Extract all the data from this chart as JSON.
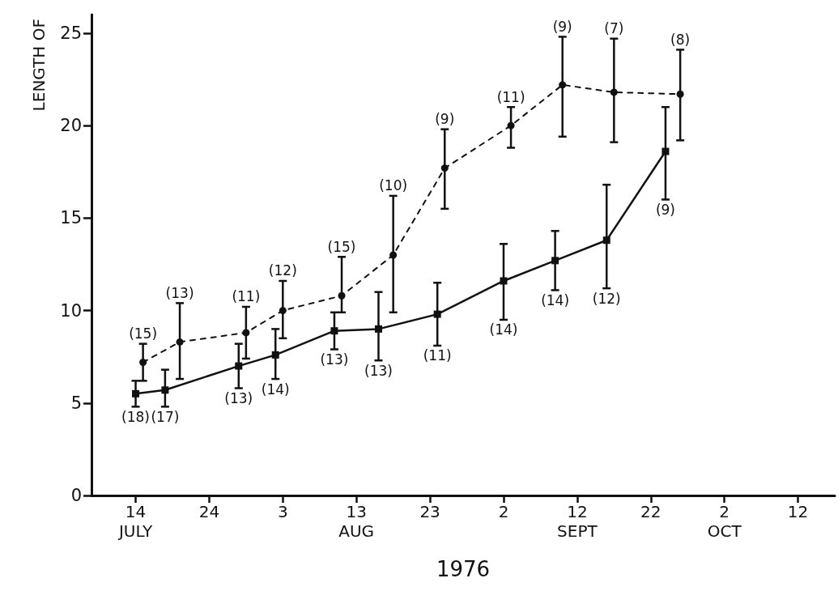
{
  "chart_data": {
    "type": "line",
    "xlabel": "1976",
    "ylabel": "LENGTH OF",
    "xlim": [
      "1976-07-08",
      "1976-10-17"
    ],
    "xticks": [
      {
        "value": "1976-07-14",
        "label": "14\nJULY"
      },
      {
        "value": "1976-07-24",
        "label": "24"
      },
      {
        "value": "1976-08-03",
        "label": "3"
      },
      {
        "value": "1976-08-13",
        "label": "13\nAUG"
      },
      {
        "value": "1976-08-23",
        "label": "23"
      },
      {
        "value": "1976-09-02",
        "label": "2"
      },
      {
        "value": "1976-09-12",
        "label": "12\nSEPT"
      },
      {
        "value": "1976-09-22",
        "label": "22"
      },
      {
        "value": "1976-10-02",
        "label": "2\nOCT"
      },
      {
        "value": "1976-10-12",
        "label": "12"
      }
    ],
    "ylim": [
      0,
      26
    ],
    "yticks": [
      0,
      5,
      10,
      15,
      20,
      25
    ],
    "grid": false,
    "series": [
      {
        "color": "#111111",
        "marker": "square",
        "line_style": "solid",
        "x": [
          "1976-07-14",
          "1976-07-18",
          "1976-07-28",
          "1976-08-02",
          "1976-08-10",
          "1976-08-16",
          "1976-08-24",
          "1976-09-02",
          "1976-09-09",
          "1976-09-16",
          "1976-09-24"
        ],
        "values": [
          5.5,
          5.7,
          7.0,
          7.6,
          8.9,
          9.0,
          9.8,
          11.6,
          12.7,
          13.8,
          18.6
        ],
        "errors": [
          [
            4.8,
            6.2
          ],
          [
            4.8,
            6.8
          ],
          [
            5.8,
            8.2
          ],
          [
            6.3,
            9.0
          ],
          [
            7.9,
            9.9
          ],
          [
            7.3,
            11.0
          ],
          [
            8.1,
            11.5
          ],
          [
            9.5,
            13.6
          ],
          [
            11.1,
            14.3
          ],
          [
            11.2,
            16.8
          ],
          [
            16.0,
            21.0
          ]
        ]
      },
      {
        "color": "#111111",
        "marker": "circle",
        "line_style": "dashed",
        "x": [
          "1976-07-15",
          "1976-07-20",
          "1976-07-29",
          "1976-08-03",
          "1976-08-11",
          "1976-08-18",
          "1976-08-25",
          "1976-09-03",
          "1976-09-10",
          "1976-09-17",
          "1976-09-26"
        ],
        "values": [
          7.2,
          8.3,
          8.8,
          10.0,
          10.8,
          13.0,
          17.7,
          20.0,
          22.2,
          21.8,
          21.7
        ],
        "errors": [
          [
            6.2,
            8.2
          ],
          [
            6.3,
            10.4
          ],
          [
            7.4,
            10.2
          ],
          [
            8.5,
            11.6
          ],
          [
            9.9,
            12.9
          ],
          [
            9.9,
            16.2
          ],
          [
            15.5,
            19.8
          ],
          [
            18.8,
            21.0
          ],
          [
            19.4,
            24.8
          ],
          [
            19.1,
            24.7
          ],
          [
            19.2,
            24.1
          ]
        ]
      }
    ],
    "annotations": [
      {
        "text": "(18)",
        "x": "1976-07-14",
        "y": 4.8
      },
      {
        "text": "(17)",
        "x": "1976-07-18",
        "y": 4.8
      },
      {
        "text": "(13)",
        "x": "1976-07-28",
        "y": 5.8
      },
      {
        "text": "(14)",
        "x": "1976-08-02",
        "y": 6.3
      },
      {
        "text": "(13)",
        "x": "1976-08-10",
        "y": 7.9
      },
      {
        "text": "(13)",
        "x": "1976-08-16",
        "y": 7.3
      },
      {
        "text": "(11)",
        "x": "1976-08-24",
        "y": 8.1
      },
      {
        "text": "(14)",
        "x": "1976-09-02",
        "y": 9.5
      },
      {
        "text": "(14)",
        "x": "1976-09-09",
        "y": 11.1
      },
      {
        "text": "(12)",
        "x": "1976-09-16",
        "y": 11.2
      },
      {
        "text": "(9)",
        "x": "1976-09-24",
        "y": 16.0
      },
      {
        "text": "(15)",
        "x": "1976-07-15",
        "y": 8.2
      },
      {
        "text": "(13)",
        "x": "1976-07-20",
        "y": 10.4
      },
      {
        "text": "(11)",
        "x": "1976-07-29",
        "y": 10.2
      },
      {
        "text": "(12)",
        "x": "1976-08-03",
        "y": 11.6
      },
      {
        "text": "(15)",
        "x": "1976-08-11",
        "y": 12.9
      },
      {
        "text": "(10)",
        "x": "1976-08-18",
        "y": 16.2
      },
      {
        "text": "(9)",
        "x": "1976-08-25",
        "y": 19.8
      },
      {
        "text": "(11)",
        "x": "1976-09-03",
        "y": 21.0
      },
      {
        "text": "(9)",
        "x": "1976-09-10",
        "y": 24.8
      },
      {
        "text": "(7)",
        "x": "1976-09-17",
        "y": 24.7
      },
      {
        "text": "(8)",
        "x": "1976-09-26",
        "y": 24.1
      }
    ]
  }
}
